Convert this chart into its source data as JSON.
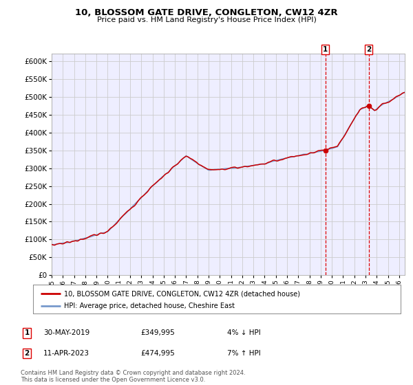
{
  "title": "10, BLOSSOM GATE DRIVE, CONGLETON, CW12 4ZR",
  "subtitle": "Price paid vs. HM Land Registry's House Price Index (HPI)",
  "legend_line1": "10, BLOSSOM GATE DRIVE, CONGLETON, CW12 4ZR (detached house)",
  "legend_line2": "HPI: Average price, detached house, Cheshire East",
  "annotation1_label": "1",
  "annotation1_date": "30-MAY-2019",
  "annotation1_price": "£349,995",
  "annotation1_hpi": "4% ↓ HPI",
  "annotation2_label": "2",
  "annotation2_date": "11-APR-2023",
  "annotation2_price": "£474,995",
  "annotation2_hpi": "7% ↑ HPI",
  "footnote": "Contains HM Land Registry data © Crown copyright and database right 2024.\nThis data is licensed under the Open Government Licence v3.0.",
  "ylim": [
    0,
    620000
  ],
  "yticks": [
    0,
    50000,
    100000,
    150000,
    200000,
    250000,
    300000,
    350000,
    400000,
    450000,
    500000,
    550000,
    600000
  ],
  "xlim_start": 1995.0,
  "xlim_end": 2026.5,
  "vline1_x": 2019.42,
  "vline2_x": 2023.28,
  "marker1_x": 2019.42,
  "marker1_y": 349995,
  "marker2_x": 2023.28,
  "marker2_y": 474995,
  "hpi_color": "#7799cc",
  "price_color": "#cc0000",
  "vline_color": "#dd0000",
  "grid_color": "#cccccc",
  "background_color": "#ffffff",
  "plot_bg_color": "#eeeeff"
}
